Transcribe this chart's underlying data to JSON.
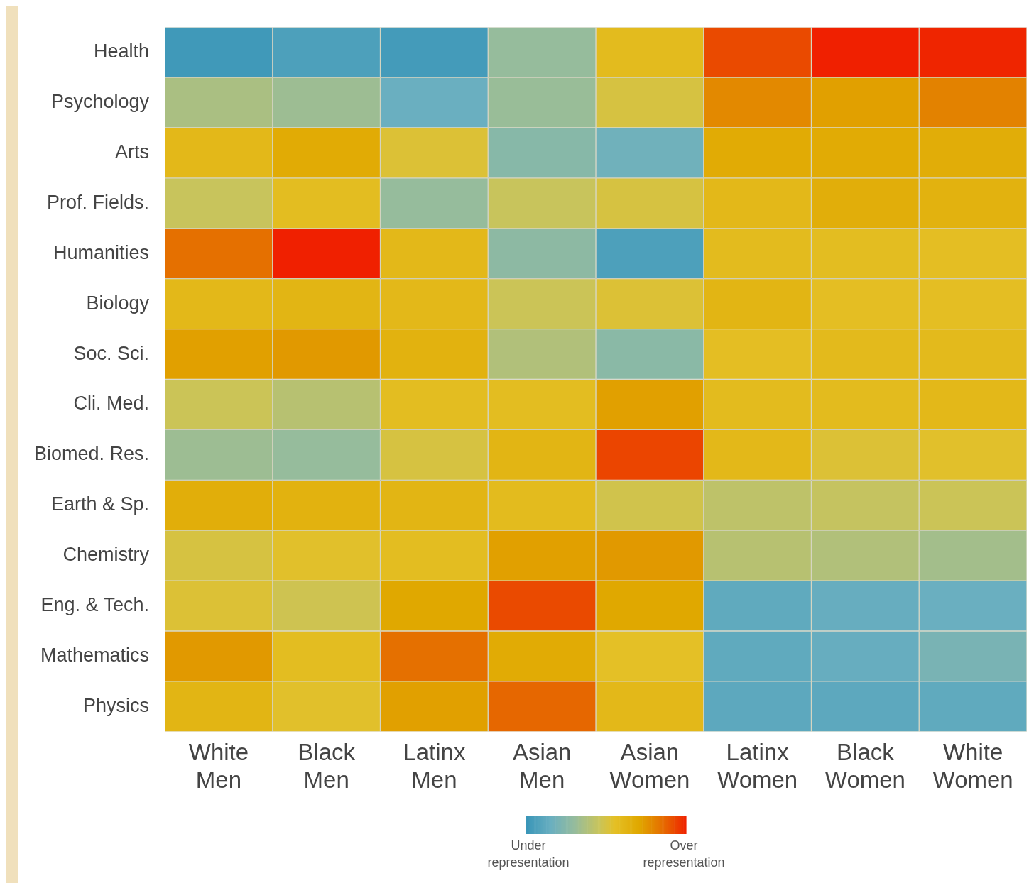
{
  "chart_data": {
    "type": "heatmap",
    "categories": [
      "White Men",
      "Black Men",
      "Latinx Men",
      "Asian Men",
      "Asian Women",
      "Latinx Women",
      "Black Women",
      "White Women"
    ],
    "y_categories": [
      "Health",
      "Psychology",
      "Arts",
      "Prof. Fields.",
      "Humanities",
      "Biology",
      "Soc. Sci.",
      "Cli. Med.",
      "Biomed. Res.",
      "Earth & Sp.",
      "Chemistry",
      "Eng. & Tech.",
      "Mathematics",
      "Physics"
    ],
    "cells": [
      [
        0.02,
        0.06,
        0.03,
        0.3,
        0.58,
        0.92,
        1.0,
        0.99
      ],
      [
        0.36,
        0.32,
        0.15,
        0.31,
        0.5,
        0.78,
        0.72,
        0.8
      ],
      [
        0.6,
        0.68,
        0.52,
        0.25,
        0.17,
        0.68,
        0.68,
        0.67
      ],
      [
        0.45,
        0.57,
        0.3,
        0.45,
        0.5,
        0.6,
        0.66,
        0.64
      ],
      [
        0.84,
        1.0,
        0.6,
        0.27,
        0.06,
        0.58,
        0.57,
        0.56
      ],
      [
        0.6,
        0.62,
        0.6,
        0.46,
        0.52,
        0.62,
        0.56,
        0.56
      ],
      [
        0.72,
        0.74,
        0.64,
        0.38,
        0.26,
        0.56,
        0.59,
        0.59
      ],
      [
        0.46,
        0.4,
        0.57,
        0.57,
        0.72,
        0.58,
        0.58,
        0.6
      ],
      [
        0.32,
        0.3,
        0.5,
        0.62,
        0.93,
        0.6,
        0.52,
        0.54
      ],
      [
        0.66,
        0.64,
        0.62,
        0.58,
        0.48,
        0.42,
        0.44,
        0.46
      ],
      [
        0.5,
        0.54,
        0.57,
        0.72,
        0.74,
        0.4,
        0.38,
        0.34
      ],
      [
        0.52,
        0.47,
        0.7,
        0.92,
        0.7,
        0.12,
        0.14,
        0.15
      ],
      [
        0.74,
        0.57,
        0.84,
        0.68,
        0.55,
        0.12,
        0.14,
        0.2
      ],
      [
        0.62,
        0.54,
        0.72,
        0.86,
        0.6,
        0.11,
        0.11,
        0.12
      ]
    ],
    "clim": [
      0,
      1
    ],
    "cticks": [
      {
        "value": 0,
        "label": "Under representation"
      },
      {
        "value": 1,
        "label": "Over representation"
      }
    ]
  }
}
